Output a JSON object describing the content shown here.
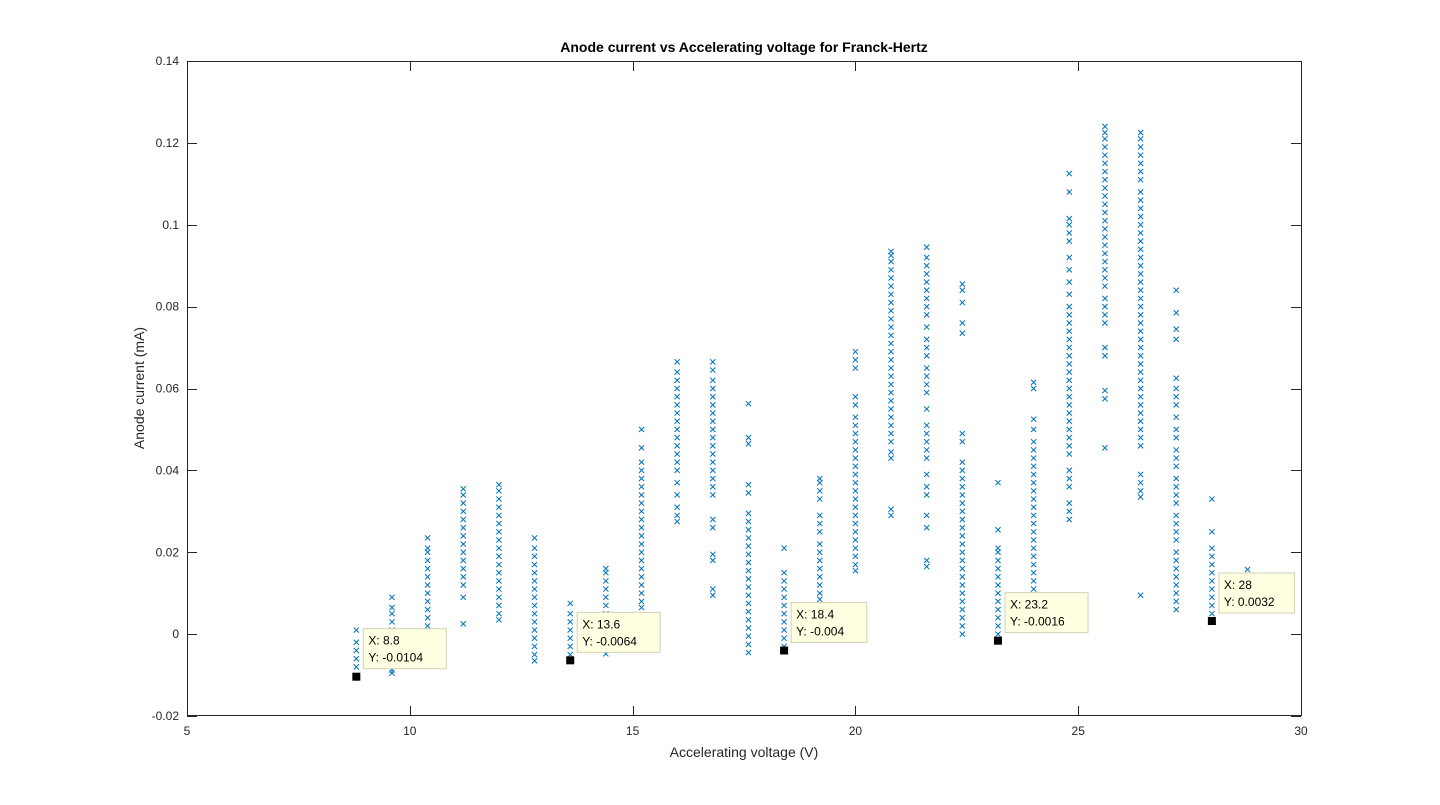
{
  "chart_data": {
    "type": "scatter",
    "title": "Anode current vs Accelerating voltage for Franck-Hertz",
    "xlabel": "Accelerating voltage (V)",
    "ylabel": "Anode current (mA)",
    "xlim": [
      5,
      30
    ],
    "ylim": [
      -0.02,
      0.14
    ],
    "xticks": [
      5,
      10,
      15,
      20,
      25,
      30
    ],
    "xtick_labels": [
      "5",
      "10",
      "15",
      "20",
      "25",
      "30"
    ],
    "yticks": [
      -0.02,
      0,
      0.02,
      0.04,
      0.06,
      0.08,
      0.1,
      0.12,
      0.14
    ],
    "ytick_labels": [
      "-0.02",
      "0",
      "0.02",
      "0.04",
      "0.06",
      "0.08",
      "0.1",
      "0.12",
      "0.14"
    ],
    "grid": false,
    "marker": "x",
    "marker_color": "#0072BD",
    "columns": [
      {
        "x": 8.8,
        "y": [
          -0.0104,
          -0.008,
          -0.006,
          -0.004,
          -0.002,
          0.001
        ]
      },
      {
        "x": 9.6,
        "y": [
          -0.0095,
          -0.0088,
          -0.007,
          -0.005,
          -0.003,
          -0.001,
          0.001,
          0.003,
          0.005,
          0.0065,
          0.009
        ]
      },
      {
        "x": 10.4,
        "y": [
          0.0,
          0.002,
          0.004,
          0.006,
          0.008,
          0.01,
          0.012,
          0.014,
          0.016,
          0.018,
          0.02,
          0.021,
          0.0235
        ]
      },
      {
        "x": 11.2,
        "y": [
          0.0025,
          0.009,
          0.012,
          0.014,
          0.016,
          0.018,
          0.02,
          0.022,
          0.024,
          0.026,
          0.028,
          0.03,
          0.032,
          0.034,
          0.0355
        ]
      },
      {
        "x": 12.0,
        "y": [
          0.0035,
          0.005,
          0.007,
          0.009,
          0.011,
          0.013,
          0.015,
          0.017,
          0.019,
          0.021,
          0.023,
          0.025,
          0.027,
          0.029,
          0.031,
          0.033,
          0.035,
          0.0365
        ]
      },
      {
        "x": 12.8,
        "y": [
          -0.0065,
          -0.005,
          -0.003,
          -0.001,
          0.001,
          0.003,
          0.005,
          0.007,
          0.009,
          0.011,
          0.013,
          0.015,
          0.017,
          0.019,
          0.021,
          0.0235
        ]
      },
      {
        "x": 13.6,
        "y": [
          -0.0064,
          -0.005,
          -0.003,
          -0.001,
          0.001,
          0.003,
          0.005,
          0.0075
        ]
      },
      {
        "x": 14.4,
        "y": [
          -0.0048,
          -0.003,
          -0.001,
          0.001,
          0.003,
          0.005,
          0.007,
          0.009,
          0.011,
          0.013,
          0.015,
          0.016
        ]
      },
      {
        "x": 15.2,
        "y": [
          0.0065,
          0.008,
          0.01,
          0.012,
          0.014,
          0.016,
          0.018,
          0.02,
          0.022,
          0.024,
          0.026,
          0.028,
          0.03,
          0.032,
          0.034,
          0.036,
          0.038,
          0.04,
          0.042,
          0.0455,
          0.05
        ]
      },
      {
        "x": 16.0,
        "y": [
          0.0275,
          0.029,
          0.031,
          0.034,
          0.037,
          0.04,
          0.042,
          0.044,
          0.046,
          0.048,
          0.05,
          0.052,
          0.054,
          0.056,
          0.058,
          0.06,
          0.062,
          0.064,
          0.0665
        ]
      },
      {
        "x": 16.8,
        "y": [
          0.0095,
          0.011,
          0.018,
          0.0195,
          0.026,
          0.028,
          0.034,
          0.036,
          0.038,
          0.04,
          0.042,
          0.044,
          0.046,
          0.048,
          0.05,
          0.052,
          0.054,
          0.056,
          0.058,
          0.06,
          0.062,
          0.0645,
          0.0665
        ]
      },
      {
        "x": 17.6,
        "y": [
          -0.0045,
          -0.0025,
          -0.0005,
          0.0015,
          0.0035,
          0.0055,
          0.0075,
          0.0095,
          0.0115,
          0.0135,
          0.0155,
          0.0175,
          0.0195,
          0.0215,
          0.0235,
          0.0255,
          0.0275,
          0.0295,
          0.0345,
          0.0365,
          0.0465,
          0.048,
          0.0563
        ]
      },
      {
        "x": 18.4,
        "y": [
          -0.004,
          -0.003,
          -0.001,
          0.001,
          0.003,
          0.005,
          0.007,
          0.009,
          0.011,
          0.013,
          0.015,
          0.021
        ]
      },
      {
        "x": 19.2,
        "y": [
          0.0085,
          0.01,
          0.012,
          0.014,
          0.016,
          0.018,
          0.02,
          0.022,
          0.025,
          0.027,
          0.029,
          0.033,
          0.035,
          0.037,
          0.038
        ]
      },
      {
        "x": 20.0,
        "y": [
          0.0155,
          0.017,
          0.019,
          0.021,
          0.023,
          0.025,
          0.027,
          0.029,
          0.031,
          0.033,
          0.035,
          0.037,
          0.039,
          0.041,
          0.043,
          0.045,
          0.047,
          0.049,
          0.051,
          0.053,
          0.056,
          0.058,
          0.065,
          0.067,
          0.069
        ]
      },
      {
        "x": 20.8,
        "y": [
          0.029,
          0.0305,
          0.043,
          0.0445,
          0.047,
          0.049,
          0.051,
          0.053,
          0.055,
          0.057,
          0.059,
          0.061,
          0.063,
          0.065,
          0.067,
          0.069,
          0.071,
          0.073,
          0.075,
          0.077,
          0.079,
          0.081,
          0.083,
          0.085,
          0.087,
          0.089,
          0.091,
          0.0925,
          0.0935
        ]
      },
      {
        "x": 21.6,
        "y": [
          0.0165,
          0.018,
          0.026,
          0.029,
          0.034,
          0.036,
          0.039,
          0.043,
          0.045,
          0.047,
          0.049,
          0.051,
          0.055,
          0.059,
          0.061,
          0.063,
          0.065,
          0.068,
          0.07,
          0.072,
          0.075,
          0.078,
          0.08,
          0.082,
          0.084,
          0.086,
          0.088,
          0.09,
          0.092,
          0.0945
        ]
      },
      {
        "x": 22.4,
        "y": [
          0.0,
          0.002,
          0.004,
          0.006,
          0.008,
          0.01,
          0.012,
          0.014,
          0.016,
          0.018,
          0.02,
          0.022,
          0.024,
          0.026,
          0.028,
          0.03,
          0.032,
          0.034,
          0.036,
          0.038,
          0.04,
          0.042,
          0.047,
          0.049,
          0.0735,
          0.076,
          0.081,
          0.084,
          0.0855
        ]
      },
      {
        "x": 23.2,
        "y": [
          -0.0016,
          0.0,
          0.002,
          0.004,
          0.006,
          0.008,
          0.01,
          0.012,
          0.014,
          0.016,
          0.018,
          0.02,
          0.021,
          0.0255,
          0.037
        ]
      },
      {
        "x": 24.0,
        "y": [
          0.011,
          0.013,
          0.015,
          0.017,
          0.019,
          0.021,
          0.023,
          0.025,
          0.027,
          0.029,
          0.031,
          0.033,
          0.035,
          0.037,
          0.039,
          0.041,
          0.043,
          0.045,
          0.047,
          0.05,
          0.0525,
          0.06,
          0.0615
        ]
      },
      {
        "x": 24.8,
        "y": [
          0.028,
          0.03,
          0.032,
          0.036,
          0.038,
          0.04,
          0.044,
          0.046,
          0.048,
          0.05,
          0.052,
          0.054,
          0.056,
          0.058,
          0.06,
          0.062,
          0.064,
          0.066,
          0.068,
          0.07,
          0.072,
          0.074,
          0.076,
          0.078,
          0.08,
          0.083,
          0.086,
          0.089,
          0.092,
          0.096,
          0.098,
          0.1,
          0.1015,
          0.108,
          0.1125
        ]
      },
      {
        "x": 25.6,
        "y": [
          0.0455,
          0.0575,
          0.0595,
          0.068,
          0.07,
          0.076,
          0.078,
          0.08,
          0.082,
          0.085,
          0.087,
          0.089,
          0.091,
          0.093,
          0.095,
          0.097,
          0.099,
          0.101,
          0.103,
          0.105,
          0.107,
          0.109,
          0.111,
          0.113,
          0.115,
          0.117,
          0.119,
          0.121,
          0.1225,
          0.124
        ]
      },
      {
        "x": 26.4,
        "y": [
          0.0095,
          0.0335,
          0.035,
          0.037,
          0.039,
          0.046,
          0.048,
          0.05,
          0.052,
          0.054,
          0.056,
          0.058,
          0.06,
          0.062,
          0.064,
          0.066,
          0.068,
          0.07,
          0.072,
          0.074,
          0.076,
          0.078,
          0.08,
          0.082,
          0.084,
          0.086,
          0.088,
          0.09,
          0.092,
          0.094,
          0.096,
          0.098,
          0.1,
          0.102,
          0.104,
          0.106,
          0.108,
          0.111,
          0.113,
          0.115,
          0.117,
          0.119,
          0.121,
          0.1225
        ]
      },
      {
        "x": 27.2,
        "y": [
          0.006,
          0.008,
          0.01,
          0.012,
          0.014,
          0.016,
          0.018,
          0.02,
          0.023,
          0.025,
          0.027,
          0.029,
          0.032,
          0.034,
          0.036,
          0.038,
          0.041,
          0.043,
          0.045,
          0.048,
          0.05,
          0.053,
          0.056,
          0.058,
          0.06,
          0.0625,
          0.072,
          0.0745,
          0.0785,
          0.084
        ]
      },
      {
        "x": 28.0,
        "y": [
          0.0032,
          0.005,
          0.007,
          0.009,
          0.011,
          0.013,
          0.015,
          0.017,
          0.019,
          0.021,
          0.025,
          0.033
        ]
      },
      {
        "x": 28.8,
        "y": [
          0.0158
        ]
      }
    ],
    "datatips": [
      {
        "x": 8.8,
        "y": -0.0104,
        "x_text": "X: 8.8",
        "y_text": "Y: -0.0104"
      },
      {
        "x": 13.6,
        "y": -0.0064,
        "x_text": "X: 13.6",
        "y_text": "Y: -0.0064"
      },
      {
        "x": 18.4,
        "y": -0.004,
        "x_text": "X: 18.4",
        "y_text": "Y: -0.004"
      },
      {
        "x": 23.2,
        "y": -0.0016,
        "x_text": "X: 23.2",
        "y_text": "Y: -0.0016"
      },
      {
        "x": 28,
        "y": 0.0032,
        "x_text": "X: 28",
        "y_text": "Y: 0.0032"
      }
    ]
  }
}
